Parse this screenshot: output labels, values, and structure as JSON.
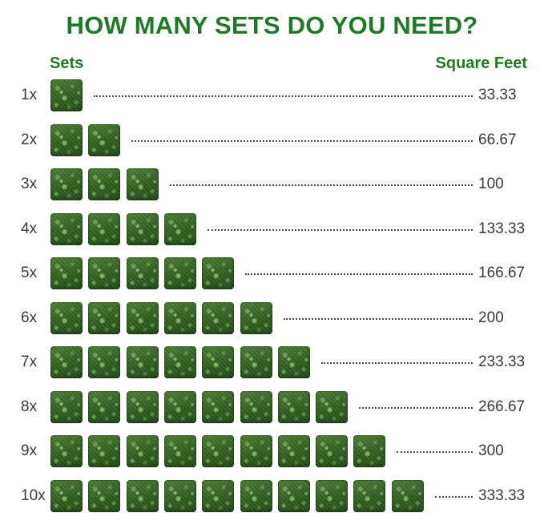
{
  "title": "HOW MANY SETS DO YOU NEED?",
  "columns": {
    "sets": "Sets",
    "square_feet": "Square Feet"
  },
  "colors": {
    "title_green": "#1f7a26",
    "text_gray": "#3b3b3b",
    "tile_green": "#2f5f20"
  },
  "rows": [
    {
      "multiplier": "1x",
      "sets": 1,
      "square_feet": "33.33"
    },
    {
      "multiplier": "2x",
      "sets": 2,
      "square_feet": "66.67"
    },
    {
      "multiplier": "3x",
      "sets": 3,
      "square_feet": "100"
    },
    {
      "multiplier": "4x",
      "sets": 4,
      "square_feet": "133.33"
    },
    {
      "multiplier": "5x",
      "sets": 5,
      "square_feet": "166.67"
    },
    {
      "multiplier": "6x",
      "sets": 6,
      "square_feet": "200"
    },
    {
      "multiplier": "7x",
      "sets": 7,
      "square_feet": "233.33"
    },
    {
      "multiplier": "8x",
      "sets": 8,
      "square_feet": "266.67"
    },
    {
      "multiplier": "9x",
      "sets": 9,
      "square_feet": "300"
    },
    {
      "multiplier": "10x",
      "sets": 10,
      "square_feet": "333.33"
    }
  ]
}
